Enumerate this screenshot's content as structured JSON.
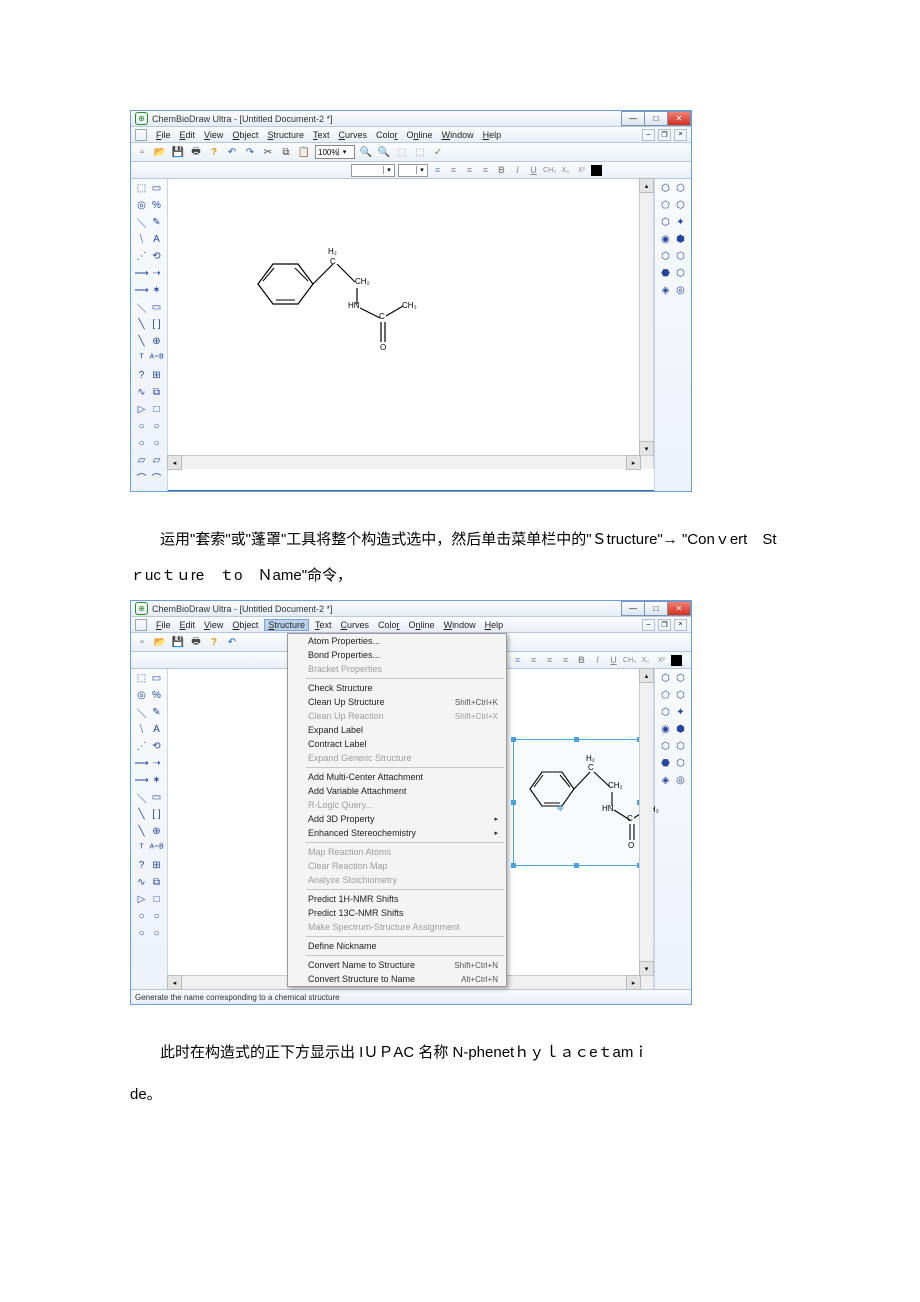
{
  "doc": {
    "paragraph1": "运用\"套索\"或\"蓬罩\"工具将整个构造式选中，然后单击菜单栏中的\"Ｓtructure\"→ \"Conｖert　Stｒucｔｕre　ｔo　Ｎame\"命令，",
    "paragraph2a": "此时在构造式的正下方显示出 IＵＰAC 名称 N-phenetｈｙｌａｃeｔamｉ",
    "paragraph2b": "de。"
  },
  "app": {
    "title": "ChemBioDraw Ultra - [Untitled Document-2 *]",
    "menus": [
      "File",
      "Edit",
      "View",
      "Object",
      "Structure",
      "Text",
      "Curves",
      "Color",
      "Online",
      "Window",
      "Help"
    ],
    "zoom": "100%",
    "status": "Generate the name corresponding to a chemical structure"
  },
  "molecule": {
    "h2": "H₂",
    "c1": "C",
    "ch2": "CH₂",
    "hn": "HN",
    "c2": "C",
    "ch3": "CH₃",
    "o": "O"
  },
  "dropdown": {
    "items": [
      {
        "label": "Atom Properties...",
        "disabled": false
      },
      {
        "label": "Bond Properties...",
        "disabled": false
      },
      {
        "label": "Bracket Properties",
        "disabled": true
      },
      {
        "sep": true
      },
      {
        "label": "Check Structure",
        "disabled": false
      },
      {
        "label": "Clean Up Structure",
        "shortcut": "Shift+Ctrl+K",
        "disabled": false
      },
      {
        "label": "Clean Up Reaction",
        "shortcut": "Shift+Ctrl+X",
        "disabled": true
      },
      {
        "label": "Expand Label",
        "disabled": false
      },
      {
        "label": "Contract Label",
        "disabled": false
      },
      {
        "label": "Expand Generic Structure",
        "disabled": true
      },
      {
        "sep": true
      },
      {
        "label": "Add Multi-Center Attachment",
        "disabled": false
      },
      {
        "label": "Add Variable Attachment",
        "disabled": false
      },
      {
        "label": "R-Logic Query...",
        "disabled": true
      },
      {
        "label": "Add 3D Property",
        "arrow": true,
        "disabled": false
      },
      {
        "label": "Enhanced Stereochemistry",
        "arrow": true,
        "disabled": false
      },
      {
        "sep": true
      },
      {
        "label": "Map Reaction Atoms",
        "disabled": true
      },
      {
        "label": "Clear Reaction Map",
        "disabled": true
      },
      {
        "label": "Analyze Stoichiometry",
        "disabled": true
      },
      {
        "sep": true
      },
      {
        "label": "Predict 1H-NMR Shifts",
        "disabled": false
      },
      {
        "label": "Predict 13C-NMR Shifts",
        "disabled": false
      },
      {
        "label": "Make Spectrum-Structure Assignment",
        "disabled": true
      },
      {
        "sep": true
      },
      {
        "label": "Define Nickname",
        "disabled": false
      },
      {
        "sep": true
      },
      {
        "label": "Convert Name to Structure",
        "shortcut": "Shift+Ctrl+N",
        "disabled": false
      },
      {
        "label": "Convert Structure to Name",
        "shortcut": "Alt+Ctrl+N",
        "disabled": false
      }
    ]
  },
  "palette_left": [
    [
      "⬚",
      "▭"
    ],
    [
      "◎",
      "%"
    ],
    [
      "＼",
      "✎"
    ],
    [
      "⧹",
      "A"
    ],
    [
      "⋰",
      "⟲"
    ],
    [
      "⟶",
      "➝"
    ],
    [
      "⟶",
      "✶"
    ],
    [
      "＼",
      "▭"
    ],
    [
      "╲",
      "[ ]"
    ],
    [
      "╲",
      "⊕"
    ],
    [
      "ᵀ",
      "ᴬ⁼ᴮ"
    ],
    [
      "?",
      "⊞"
    ],
    [
      "∿",
      "⧉"
    ],
    [
      "▷",
      "□"
    ],
    [
      "○",
      "○"
    ],
    [
      "○",
      "○"
    ],
    [
      "▱",
      "▱"
    ],
    [
      "⌒",
      "⌒"
    ]
  ],
  "palette_right": [
    [
      "⬡",
      "⬡"
    ],
    [
      "⬠",
      "⬡"
    ],
    [
      "⬡",
      "✦"
    ],
    [
      "◉",
      "⬢"
    ],
    [
      "⬡",
      "⬡"
    ],
    [
      "⬣",
      "⬡"
    ],
    [
      "◈",
      "◎"
    ]
  ],
  "colors": {
    "title_bar_grad_top": "#fefefe",
    "title_bar_grad_bot": "#e4ecf7",
    "border": "#6a9edc",
    "close_grad_top": "#f08075",
    "close_grad_bot": "#d2311e",
    "icon_blue": "#22469e",
    "menu_highlight": "#bcd3f0",
    "selection": "#4aa3df"
  }
}
